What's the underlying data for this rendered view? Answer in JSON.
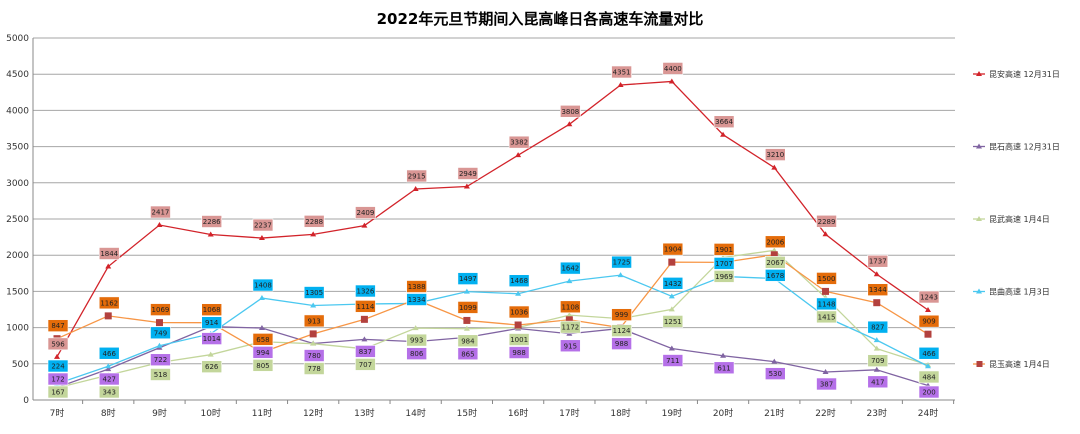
{
  "chart_data": {
    "type": "line",
    "title": "2022年元旦节期间入昆高峰日各高速车流量对比",
    "categories": [
      "7时",
      "8时",
      "9时",
      "10时",
      "11时",
      "12时",
      "13时",
      "14时",
      "15时",
      "16时",
      "17时",
      "18时",
      "19时",
      "20时",
      "21时",
      "22时",
      "23时",
      "24时"
    ],
    "ylim": [
      0,
      5000
    ],
    "yticks": [
      0,
      500,
      1000,
      1500,
      2000,
      2500,
      3000,
      3500,
      4000,
      4500,
      5000
    ],
    "grid": true,
    "legend_position": "right",
    "series": [
      {
        "name": "昆安高速 12月31日",
        "color": "#d2232a",
        "label_bg": "#d99694",
        "marker": "triangle",
        "values": [
          596,
          1844,
          2417,
          2286,
          2237,
          2288,
          2409,
          2915,
          2949,
          3382,
          3808,
          4351,
          4400,
          3664,
          3210,
          2289,
          1737,
          1243
        ]
      },
      {
        "name": "昆石高速 12月31日",
        "color": "#8064a2",
        "label_bg": "#b570e8",
        "marker": "triangle",
        "values": [
          172,
          427,
          722,
          1014,
          994,
          780,
          837,
          806,
          865,
          988,
          915,
          988,
          711,
          611,
          530,
          387,
          417,
          200
        ]
      },
      {
        "name": "昆武高速 1月4日",
        "color": "#c3d69b",
        "label_bg": "#c3d69b",
        "marker": "triangle",
        "values": [
          167,
          343,
          518,
          626,
          805,
          778,
          707,
          993,
          984,
          1001,
          1172,
          1124,
          1251,
          1969,
          2067,
          1415,
          709,
          484
        ]
      },
      {
        "name": "昆曲高速 1月3日",
        "color": "#4bc8f0",
        "label_bg": "#00b0f0",
        "marker": "triangle",
        "values": [
          224,
          466,
          749,
          914,
          1408,
          1305,
          1326,
          1334,
          1497,
          1468,
          1642,
          1725,
          1432,
          1707,
          1678,
          1148,
          827,
          466
        ]
      },
      {
        "name": "昆玉高速 1月4日",
        "color": "#f79646",
        "label_bg": "#e46c0a",
        "marker": "square",
        "marker_color": "#b3413e",
        "values": [
          847,
          1162,
          1069,
          1068,
          658,
          913,
          1114,
          1388,
          1099,
          1036,
          1108,
          999,
          1904,
          1901,
          2006,
          1500,
          1344,
          909
        ]
      }
    ]
  }
}
